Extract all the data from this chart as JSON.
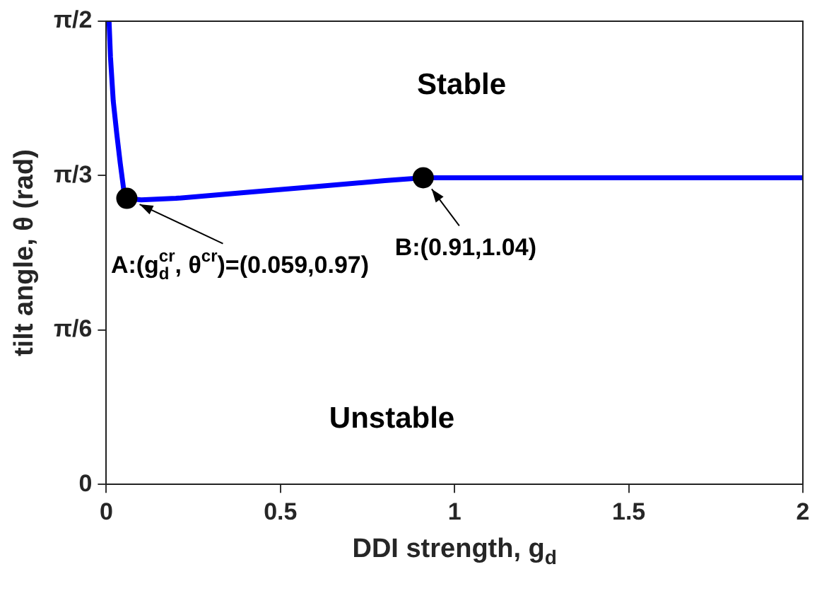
{
  "chart_data": {
    "type": "line",
    "xlabel": "DDI strength, g$_{d}$",
    "ylabel": "tilt angle, θ (rad)",
    "xlim": [
      0,
      2
    ],
    "xticks": [
      0,
      0.5,
      1,
      1.5,
      2
    ],
    "ylim": [
      0,
      1.5708
    ],
    "yticks": [
      {
        "value": 0,
        "label": "0"
      },
      {
        "value": 0.5236,
        "label": "π/6"
      },
      {
        "value": 1.0472,
        "label": "π/3"
      },
      {
        "value": 1.5708,
        "label": "π/2"
      }
    ],
    "grid": false,
    "legend": false,
    "series": [
      {
        "color": "#0000ff",
        "marker": "none",
        "line_style": "solid",
        "x": [
          0.008,
          0.012,
          0.02,
          0.03,
          0.04,
          0.05,
          0.059,
          0.1,
          0.2,
          0.4,
          0.6,
          0.8,
          0.91,
          2
        ],
        "values": [
          1.57,
          1.45,
          1.3,
          1.19,
          1.09,
          1.0,
          0.97,
          0.965,
          0.97,
          0.99,
          1.01,
          1.03,
          1.04,
          1.04
        ]
      },
      {
        "type": "scatter",
        "color": "#000000",
        "marker": "circle",
        "x": [
          0.059,
          0.91
        ],
        "values": [
          0.97,
          1.04
        ]
      }
    ],
    "annotations": [
      "Stable",
      "Unstable",
      {
        "text": "A:(g$_{d}$$^{cr}$, θ$^{cr}$)=(0.059,0.97)",
        "x": 0.059,
        "y": 0.97
      },
      {
        "text": "B:(0.91,1.04)",
        "x": 0.91,
        "y": 1.04
      }
    ]
  }
}
